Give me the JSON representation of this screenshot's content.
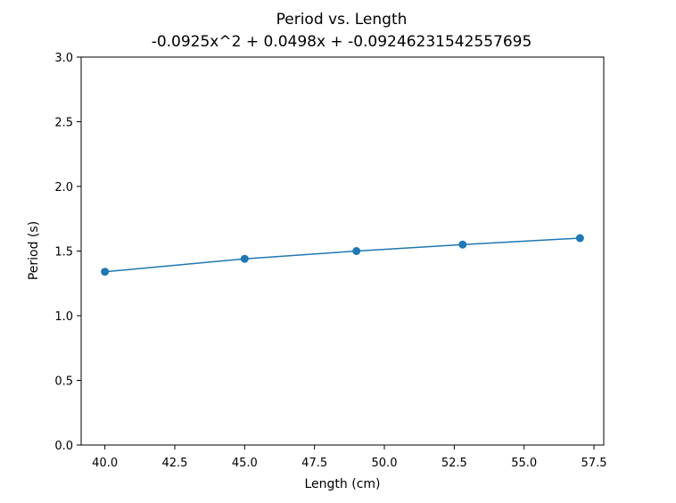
{
  "chart_data": {
    "type": "scatter",
    "title": "Period vs. Length",
    "subtitle": "-0.0925x^2 + 0.0498x + -0.09246231542557695",
    "xlabel": "Length (cm)",
    "ylabel": "Period (s)",
    "xlim": [
      39.15,
      57.85
    ],
    "ylim": [
      0,
      3.0
    ],
    "xticks": [
      "40.0",
      "42.5",
      "45.0",
      "47.5",
      "50.0",
      "52.5",
      "55.0",
      "57.5"
    ],
    "yticks": [
      "0.0",
      "0.5",
      "1.0",
      "1.5",
      "2.0",
      "2.5",
      "3.0"
    ],
    "grid": false,
    "series": [
      {
        "x": [
          40.0,
          45.0,
          49.0,
          52.8,
          57.0
        ],
        "y": [
          1.34,
          1.44,
          1.5,
          1.55,
          1.6
        ],
        "yerr": [
          0.02,
          0.015,
          0.025,
          0.025,
          0.025
        ],
        "color": "#1f77b4",
        "fit_line": true
      }
    ]
  }
}
